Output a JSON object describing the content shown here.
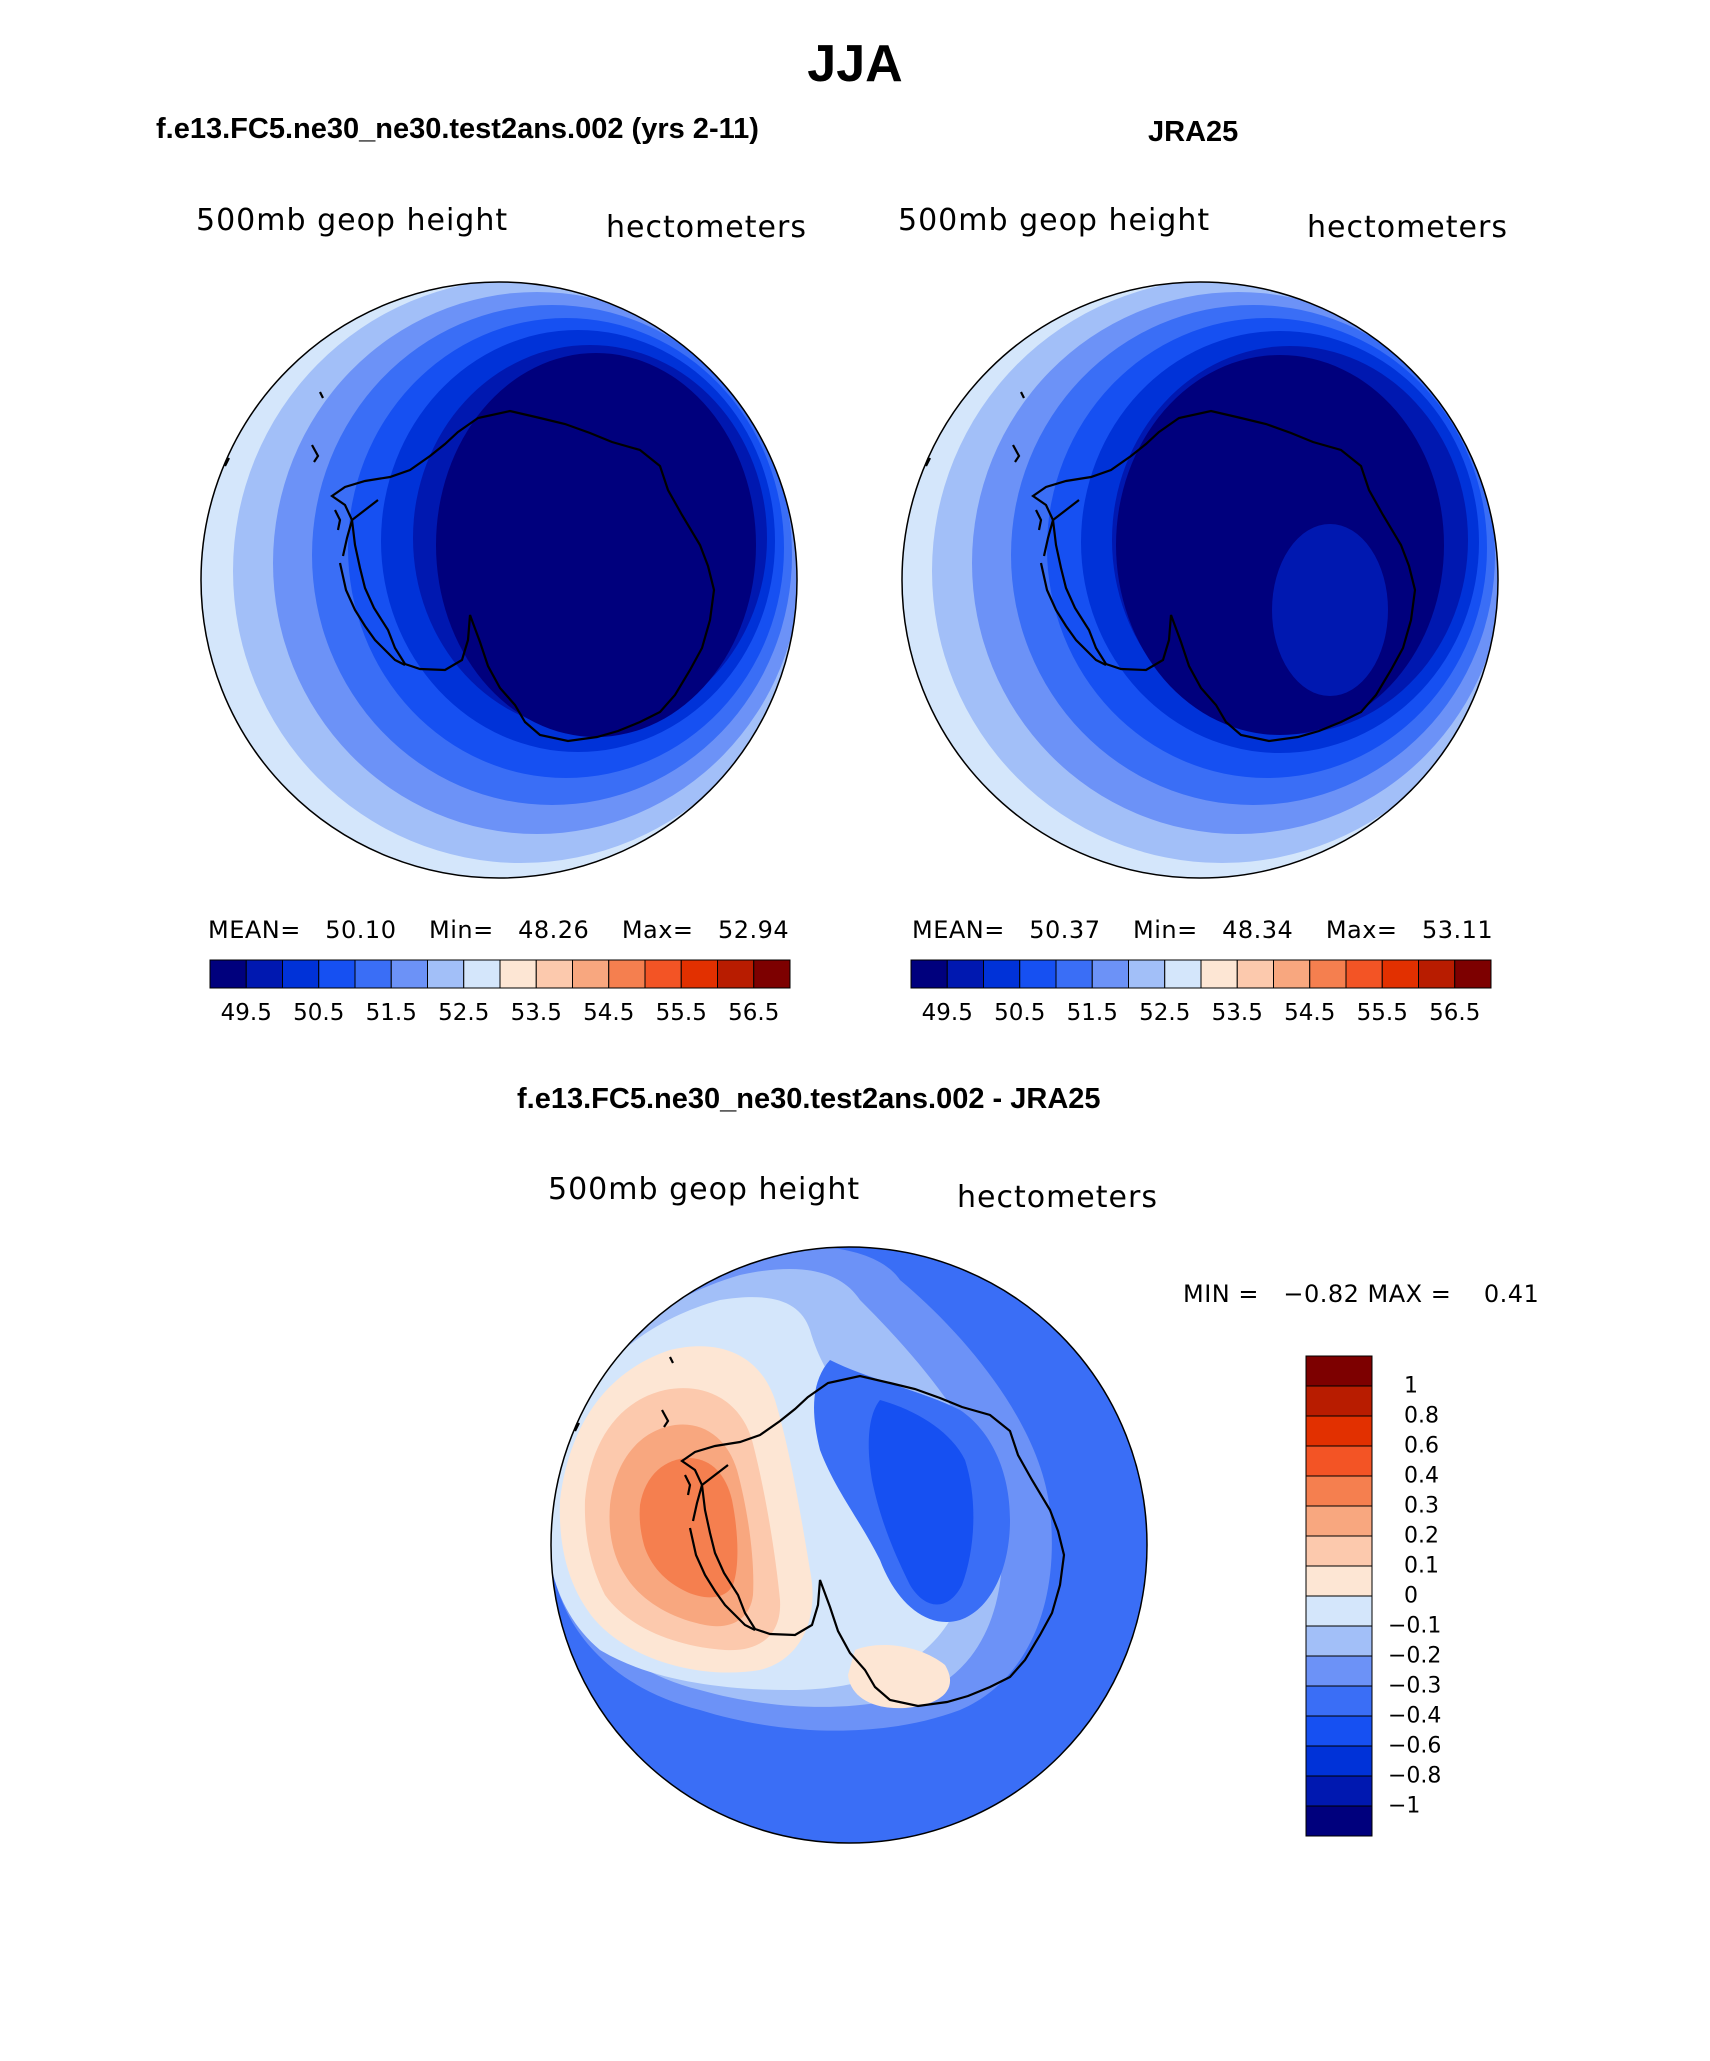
{
  "main_title": "JJA",
  "colors": {
    "abs_scale": [
      "#00007d",
      "#0018b0",
      "#0032d8",
      "#1650f2",
      "#3a6ef6",
      "#6c92f7",
      "#a2bff8",
      "#d4e6fb",
      "#fde6d4",
      "#fcc9ad",
      "#f8a77f",
      "#f57f4f",
      "#f35425",
      "#e23000",
      "#b81c00",
      "#7d0000"
    ],
    "diff_scale": [
      "#00007d",
      "#0018b0",
      "#0032d8",
      "#1650f2",
      "#3a6ef6",
      "#6c92f7",
      "#a2bff8",
      "#d4e6fb",
      "#fde6d4",
      "#fcc9ad",
      "#f8a77f",
      "#f57f4f",
      "#f35425",
      "#e23000",
      "#b81c00",
      "#7d0000"
    ],
    "land_outline": "#000000"
  },
  "panels": [
    {
      "id": "model",
      "title": "f.e13.FC5.ne30_ne30.test2ans.002 (yrs 2-11)",
      "left_label": "500mb geop height",
      "right_label": "hectometers",
      "stats": {
        "mean_label": "MEAN=",
        "mean": "50.10",
        "min_label": "Min=",
        "min": "48.26",
        "max_label": "Max=",
        "max": "52.94"
      }
    },
    {
      "id": "obs",
      "title": "JRA25",
      "left_label": "500mb geop height",
      "right_label": "hectometers",
      "stats": {
        "mean_label": "MEAN=",
        "mean": "50.37",
        "min_label": "Min=",
        "min": "48.34",
        "max_label": "Max=",
        "max": "53.11"
      }
    }
  ],
  "abs_colorbar_ticks": [
    "49.5",
    "50.5",
    "51.5",
    "52.5",
    "53.5",
    "54.5",
    "55.5",
    "56.5"
  ],
  "diff_panel": {
    "title": "f.e13.FC5.ne30_ne30.test2ans.002 - JRA25",
    "left_label": "500mb geop height",
    "right_label": "hectometers",
    "minmax": "MIN =   −0.82 MAX =    0.41",
    "colorbar_ticks": [
      "1",
      "0.8",
      "0.6",
      "0.4",
      "0.3",
      "0.2",
      "0.1",
      "0",
      "−0.1",
      "−0.2",
      "−0.3",
      "−0.4",
      "−0.6",
      "−0.8",
      "−1"
    ]
  },
  "map_data": {
    "projection": "south-polar-stereographic",
    "variable": "500mb geop height",
    "units": "hectometers",
    "season": "JJA",
    "abs_levels": [
      49.5,
      50,
      50.5,
      51,
      51.5,
      52,
      52.5,
      53,
      53.5,
      54,
      54.5,
      55,
      55.5,
      56,
      56.5
    ],
    "diff_levels": [
      -1,
      -0.8,
      -0.6,
      -0.4,
      -0.3,
      -0.2,
      -0.1,
      0,
      0.1,
      0.2,
      0.3,
      0.4,
      0.6,
      0.8,
      1
    ]
  }
}
